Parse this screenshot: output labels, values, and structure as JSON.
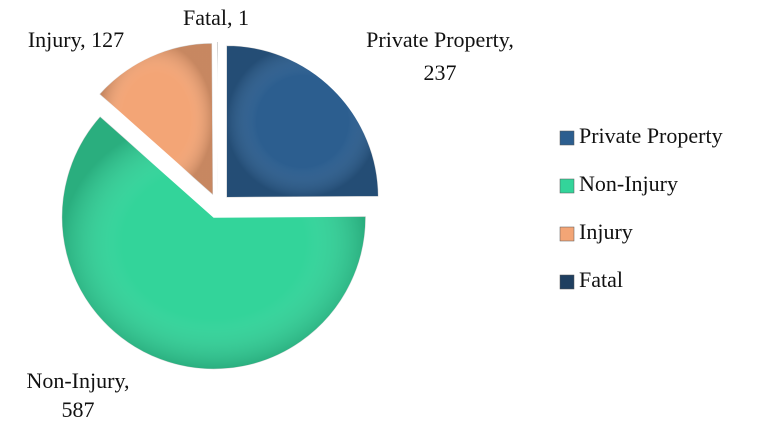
{
  "chart_data": {
    "type": "pie",
    "categories": [
      "Private Property",
      "Non-Injury",
      "Injury",
      "Fatal"
    ],
    "values": [
      237,
      587,
      127,
      1
    ],
    "colors": [
      "#2c5e8f",
      "#33d49a",
      "#f3a576",
      "#1f3f60"
    ],
    "legend": "right"
  }
}
